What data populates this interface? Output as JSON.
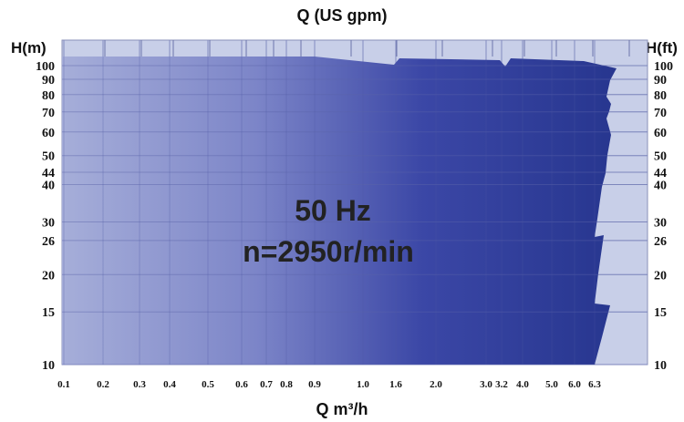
{
  "chart_data": {
    "type": "area",
    "title": "Q (US gpm)",
    "xlabel": "Q m³/h",
    "ylabel_left": "H(m)",
    "ylabel_right": "H(ft)",
    "x_scale": "categorical-log",
    "y_scale": "log",
    "ylim": [
      10,
      100
    ],
    "x_ticks": [
      "0.1",
      "0.2",
      "0.3",
      "0.4",
      "0.5",
      "0.6",
      "0.7",
      "0.8",
      "0.9",
      "1.0",
      "1.6",
      "2.0",
      "3.0",
      "3.2",
      "4.0",
      "5.0",
      "6.0",
      "6.3"
    ],
    "y_ticks_left": [
      "100",
      "90",
      "80",
      "70",
      "60",
      "50",
      "44",
      "40",
      "30",
      "26",
      "20",
      "15",
      "10"
    ],
    "y_ticks_right": [
      "100",
      "90",
      "80",
      "70",
      "60",
      "50",
      "44",
      "40",
      "30",
      "26",
      "20",
      "15",
      "10"
    ],
    "annotation": [
      "50 Hz",
      "n=2950r/min"
    ],
    "grid": true,
    "colors": {
      "background": "#c8cfe8",
      "area_light": "#a4acd8",
      "area_dark": "#2c3a9a",
      "grid_line": "#6c74ac"
    }
  }
}
